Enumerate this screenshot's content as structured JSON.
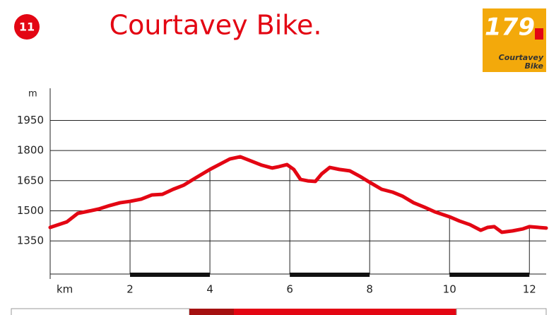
{
  "badge": "11",
  "logo": {
    "number": "179",
    "name": "Courtavey",
    "sub": "Bike"
  },
  "chart_data": {
    "type": "line",
    "title": "Courtavey Bike.",
    "ylabel": "m",
    "xlabel": "km",
    "xlim": [
      0,
      12.42
    ],
    "ylim": [
      1185,
      2110
    ],
    "xticks": [
      2,
      4,
      6,
      8,
      10,
      12
    ],
    "yticks": [
      1350,
      1500,
      1650,
      1800,
      1950
    ],
    "grid": true,
    "series": [
      {
        "color": "#e30613",
        "x": [
          0,
          0.42,
          0.69,
          0.96,
          1.22,
          1.49,
          1.75,
          2,
          2.28,
          2.55,
          2.81,
          3.08,
          3.35,
          3.61,
          4,
          4.23,
          4.5,
          4.76,
          5.03,
          5.3,
          5.56,
          5.73,
          5.93,
          6.1,
          6.27,
          6.45,
          6.64,
          6.8,
          7.0,
          7.24,
          7.5,
          7.77,
          8,
          8.3,
          8.57,
          8.83,
          9.1,
          9.36,
          9.63,
          10,
          10.25,
          10.51,
          10.78,
          10.95,
          11.12,
          11.31,
          11.58,
          11.84,
          12,
          12.42
        ],
        "values": [
          1417,
          1445,
          1487,
          1498,
          1509,
          1526,
          1540,
          1547,
          1558,
          1579,
          1582,
          1607,
          1628,
          1660,
          1706,
          1730,
          1758,
          1769,
          1748,
          1727,
          1713,
          1720,
          1730,
          1706,
          1656,
          1649,
          1646,
          1684,
          1716,
          1706,
          1699,
          1670,
          1642,
          1607,
          1593,
          1572,
          1540,
          1519,
          1495,
          1470,
          1449,
          1431,
          1403,
          1417,
          1421,
          1393,
          1400,
          1410,
          1421,
          1414
        ]
      }
    ]
  }
}
